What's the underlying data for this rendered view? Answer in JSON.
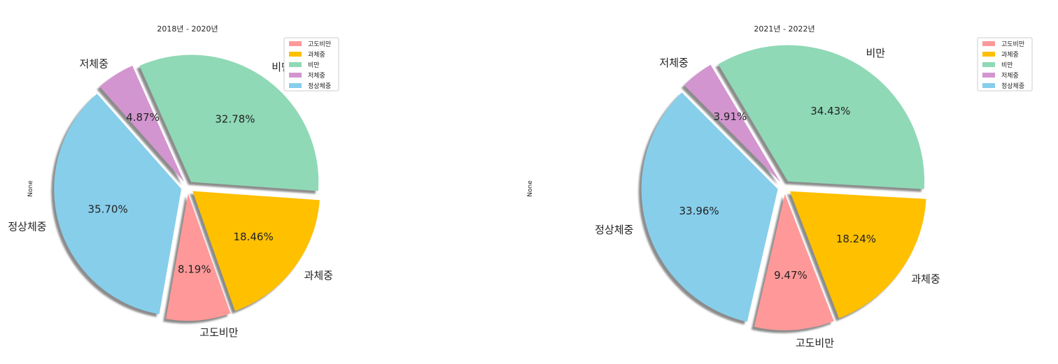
{
  "colors": {
    "고도비만": "#ff9999",
    "과체중": "#ffc000",
    "비만": "#8fd9b6",
    "저체중": "#d395d0",
    "정상체중": "#87ceeb"
  },
  "chart_data": [
    {
      "type": "pie",
      "title": "2018년 - 2020년",
      "ylabel": "None",
      "legend": "top-right",
      "shadow": true,
      "exploded": true,
      "categories": [
        "고도비만",
        "과체중",
        "비만",
        "저체중",
        "정상체중"
      ],
      "values": [
        8.19,
        18.46,
        32.78,
        4.87,
        35.7
      ],
      "labels": [
        "8.19%",
        "18.46%",
        "32.78%",
        "4.87%",
        "35.70%"
      ]
    },
    {
      "type": "pie",
      "title": "2021년 - 2022년",
      "ylabel": "None",
      "legend": "top-right",
      "shadow": true,
      "exploded": true,
      "categories": [
        "고도비만",
        "과체중",
        "비만",
        "저체중",
        "정상체중"
      ],
      "values": [
        9.47,
        18.24,
        34.43,
        3.91,
        33.96
      ],
      "labels": [
        "9.47%",
        "18.24%",
        "34.43%",
        "3.91%",
        "33.96%"
      ]
    }
  ]
}
